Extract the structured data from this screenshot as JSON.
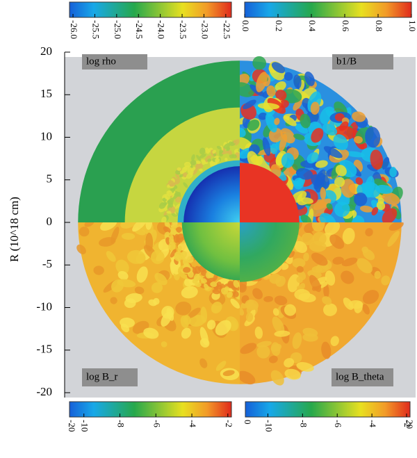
{
  "chart_data": {
    "type": "field-map",
    "ylabel": "R (10^18 cm)",
    "ylim": [
      -20,
      20
    ],
    "yticks": [
      20,
      15,
      10,
      5,
      0,
      -5,
      -10,
      -15,
      -20
    ],
    "colorbars": [
      {
        "label": "log rho",
        "lim": [
          -26.08,
          -22.37
        ],
        "ticks": [
          {
            "value": -26,
            "label": "-26.0"
          },
          -25.5,
          {
            "value": -25,
            "label": "-25.0"
          },
          -24.5,
          {
            "value": -24,
            "label": "-24.0"
          },
          -23.5,
          {
            "value": -23,
            "label": "-23.0"
          },
          -22.5
        ]
      },
      {
        "label": "b1/B",
        "lim": [
          0,
          1
        ],
        "ticks": [
          {
            "value": 0,
            "label": "0.0"
          },
          0.2,
          0.4,
          0.6,
          0.8,
          {
            "value": 1,
            "label": "1.0"
          }
        ]
      },
      {
        "label": "log B_r",
        "lim": [
          -10.8,
          -1.8
        ],
        "min_label": -20,
        "ticks": [
          -10,
          -8,
          -6,
          -4,
          -2
        ]
      },
      {
        "label": "log B_theta",
        "lim": [
          -11.3,
          -1.8
        ],
        "min_label": 0,
        "max_label": 20,
        "ticks": [
          -10,
          -8,
          -6,
          -4,
          -2
        ]
      }
    ]
  }
}
